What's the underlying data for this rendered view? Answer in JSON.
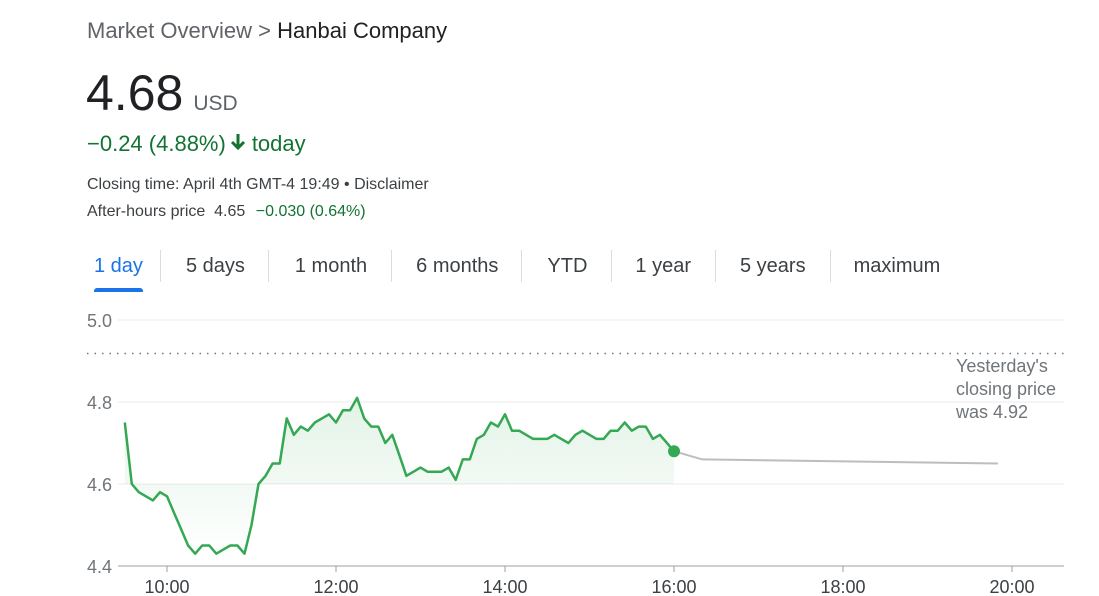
{
  "breadcrumb": {
    "parent": "Market Overview",
    "separator": ">",
    "current": "Hanbai Company"
  },
  "quote": {
    "price": "4.68",
    "currency": "USD",
    "change": "−0.24 (4.88%)",
    "change_period": "today",
    "closing_time": "Closing time: April 4th GMT-4 19:49",
    "disclaimer": "• Disclaimer",
    "after_hours_label": "After-hours price",
    "after_hours_price": "4.65",
    "after_hours_change": "−0.030 (0.64%)"
  },
  "tabs": [
    "1 day",
    "5 days",
    "1 month",
    "6 months",
    "YTD",
    "1 year",
    "5 years",
    "maximum"
  ],
  "active_tab": 0,
  "colors": {
    "up_green": "#137333",
    "line_green": "#34a853",
    "accent_blue": "#1a73e8",
    "after_hours_gray": "#bdbdbd"
  },
  "chart_data": {
    "type": "line",
    "x_ticks": [
      "10:00",
      "12:00",
      "14:00",
      "16:00",
      "18:00",
      "20:00"
    ],
    "y_ticks": [
      "5.0",
      "4.8",
      "4.6",
      "4.4"
    ],
    "ylim": [
      4.4,
      5.0
    ],
    "grid": true,
    "previous_close": 4.92,
    "previous_close_note": [
      "Yesterday's",
      "closing price",
      "was 4.92"
    ],
    "series": [
      {
        "values": [
          [
            "09:30",
            4.75
          ],
          [
            "09:35",
            4.6
          ],
          [
            "09:40",
            4.58
          ],
          [
            "09:45",
            4.57
          ],
          [
            "09:50",
            4.56
          ],
          [
            "09:55",
            4.58
          ],
          [
            "10:00",
            4.57
          ],
          [
            "10:05",
            4.53
          ],
          [
            "10:10",
            4.49
          ],
          [
            "10:15",
            4.45
          ],
          [
            "10:20",
            4.43
          ],
          [
            "10:25",
            4.45
          ],
          [
            "10:30",
            4.45
          ],
          [
            "10:35",
            4.43
          ],
          [
            "10:40",
            4.44
          ],
          [
            "10:45",
            4.45
          ],
          [
            "10:50",
            4.45
          ],
          [
            "10:55",
            4.43
          ],
          [
            "11:00",
            4.5
          ],
          [
            "11:05",
            4.6
          ],
          [
            "11:10",
            4.62
          ],
          [
            "11:15",
            4.65
          ],
          [
            "11:20",
            4.65
          ],
          [
            "11:25",
            4.76
          ],
          [
            "11:30",
            4.72
          ],
          [
            "11:35",
            4.74
          ],
          [
            "11:40",
            4.73
          ],
          [
            "11:45",
            4.75
          ],
          [
            "11:50",
            4.76
          ],
          [
            "11:55",
            4.77
          ],
          [
            "12:00",
            4.75
          ],
          [
            "12:05",
            4.78
          ],
          [
            "12:10",
            4.78
          ],
          [
            "12:15",
            4.81
          ],
          [
            "12:20",
            4.76
          ],
          [
            "12:25",
            4.74
          ],
          [
            "12:30",
            4.74
          ],
          [
            "12:35",
            4.7
          ],
          [
            "12:40",
            4.72
          ],
          [
            "12:45",
            4.67
          ],
          [
            "12:50",
            4.62
          ],
          [
            "12:55",
            4.63
          ],
          [
            "13:00",
            4.64
          ],
          [
            "13:05",
            4.63
          ],
          [
            "13:10",
            4.63
          ],
          [
            "13:15",
            4.63
          ],
          [
            "13:20",
            4.64
          ],
          [
            "13:25",
            4.61
          ],
          [
            "13:30",
            4.66
          ],
          [
            "13:35",
            4.66
          ],
          [
            "13:40",
            4.71
          ],
          [
            "13:45",
            4.72
          ],
          [
            "13:50",
            4.75
          ],
          [
            "13:55",
            4.74
          ],
          [
            "14:00",
            4.77
          ],
          [
            "14:05",
            4.73
          ],
          [
            "14:10",
            4.73
          ],
          [
            "14:15",
            4.72
          ],
          [
            "14:20",
            4.71
          ],
          [
            "14:25",
            4.71
          ],
          [
            "14:30",
            4.71
          ],
          [
            "14:35",
            4.72
          ],
          [
            "14:40",
            4.71
          ],
          [
            "14:45",
            4.7
          ],
          [
            "14:50",
            4.72
          ],
          [
            "14:55",
            4.73
          ],
          [
            "15:00",
            4.72
          ],
          [
            "15:05",
            4.71
          ],
          [
            "15:10",
            4.71
          ],
          [
            "15:15",
            4.73
          ],
          [
            "15:20",
            4.73
          ],
          [
            "15:25",
            4.75
          ],
          [
            "15:30",
            4.73
          ],
          [
            "15:35",
            4.74
          ],
          [
            "15:40",
            4.74
          ],
          [
            "15:45",
            4.71
          ],
          [
            "15:50",
            4.72
          ],
          [
            "15:55",
            4.7
          ],
          [
            "16:00",
            4.68
          ]
        ]
      },
      {
        "values": [
          [
            "16:00",
            4.68
          ],
          [
            "16:20",
            4.66
          ],
          [
            "19:50",
            4.65
          ]
        ]
      }
    ]
  }
}
